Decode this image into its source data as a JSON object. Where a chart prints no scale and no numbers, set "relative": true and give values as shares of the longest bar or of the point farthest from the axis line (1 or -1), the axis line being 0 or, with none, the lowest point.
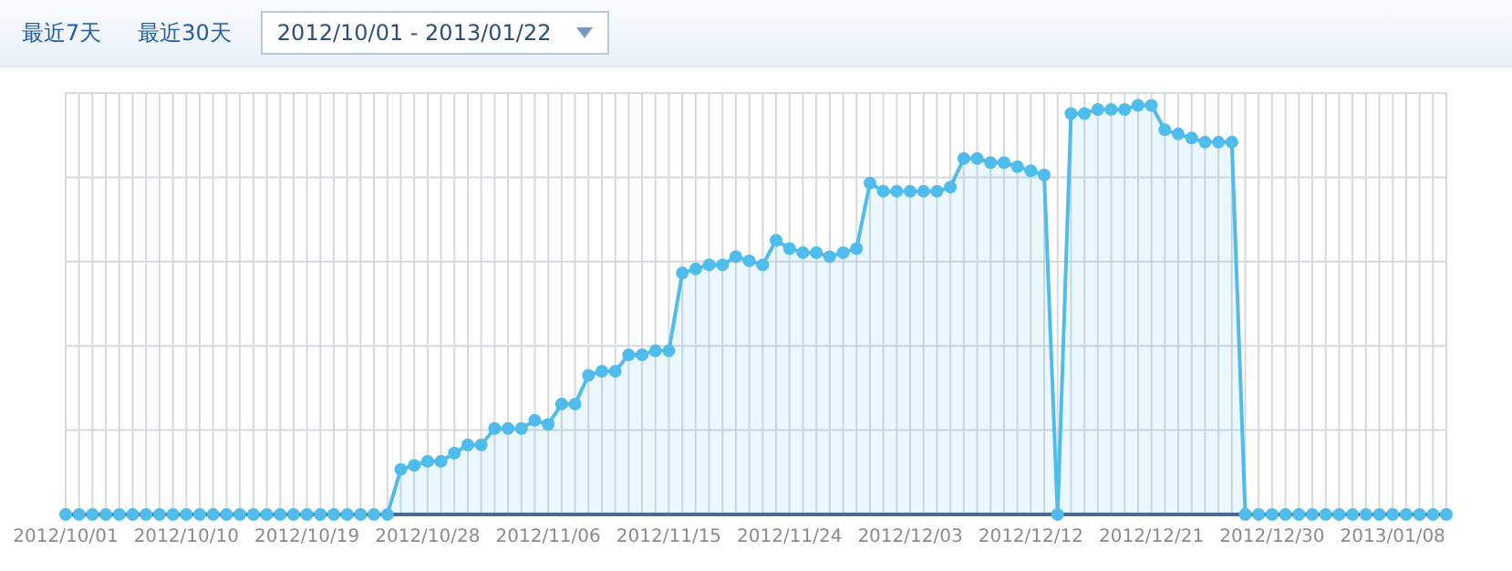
{
  "chart_data": {
    "type": "area",
    "relative": true,
    "grid": true,
    "legend": false,
    "marker": "circle",
    "annotations": [
      "最近7天",
      "最近30天",
      "2012/10/01 - 2013/01/22"
    ],
    "categories": [
      "2012/10/01",
      null,
      null,
      null,
      null,
      null,
      null,
      null,
      null,
      "2012/10/10",
      null,
      null,
      null,
      null,
      null,
      null,
      null,
      null,
      "2012/10/19",
      null,
      null,
      null,
      null,
      null,
      null,
      null,
      null,
      "2012/10/28",
      null,
      null,
      null,
      null,
      null,
      null,
      null,
      null,
      "2012/11/06",
      null,
      null,
      null,
      null,
      null,
      null,
      null,
      null,
      "2012/11/15",
      null,
      null,
      null,
      null,
      null,
      null,
      null,
      null,
      "2012/11/24",
      null,
      null,
      null,
      null,
      null,
      null,
      null,
      null,
      "2012/12/03",
      null,
      null,
      null,
      null,
      null,
      null,
      null,
      null,
      "2012/12/12",
      null,
      null,
      null,
      null,
      null,
      null,
      null,
      null,
      "2012/12/21",
      null,
      null,
      null,
      null,
      null,
      null,
      null,
      null,
      "2012/12/30",
      null,
      null,
      null,
      null,
      null,
      null,
      null,
      null,
      "2013/01/08",
      null,
      null,
      null,
      null
    ],
    "series": [
      {
        "color": "#4fbcec",
        "values": [
          0,
          0,
          0,
          0,
          0,
          0,
          0,
          0,
          0,
          0,
          0,
          0,
          0,
          0,
          0,
          0,
          0,
          0,
          0,
          0,
          0,
          0,
          0,
          0,
          0,
          0.11,
          0.12,
          0.13,
          0.13,
          0.15,
          0.17,
          0.17,
          0.21,
          0.21,
          0.21,
          0.23,
          0.22,
          0.27,
          0.27,
          0.34,
          0.35,
          0.35,
          0.39,
          0.39,
          0.4,
          0.4,
          0.59,
          0.6,
          0.61,
          0.61,
          0.63,
          0.62,
          0.61,
          0.67,
          0.65,
          0.64,
          0.64,
          0.63,
          0.64,
          0.65,
          0.81,
          0.79,
          0.79,
          0.79,
          0.79,
          0.79,
          0.8,
          0.87,
          0.87,
          0.86,
          0.86,
          0.85,
          0.84,
          0.83,
          0,
          0.98,
          0.98,
          0.99,
          0.99,
          0.99,
          1,
          1,
          0.94,
          0.93,
          0.92,
          0.91,
          0.91,
          0.91,
          0,
          0,
          0,
          0,
          0,
          0,
          0,
          0,
          0,
          0,
          0,
          0,
          0,
          0,
          0,
          0
        ]
      }
    ]
  }
}
